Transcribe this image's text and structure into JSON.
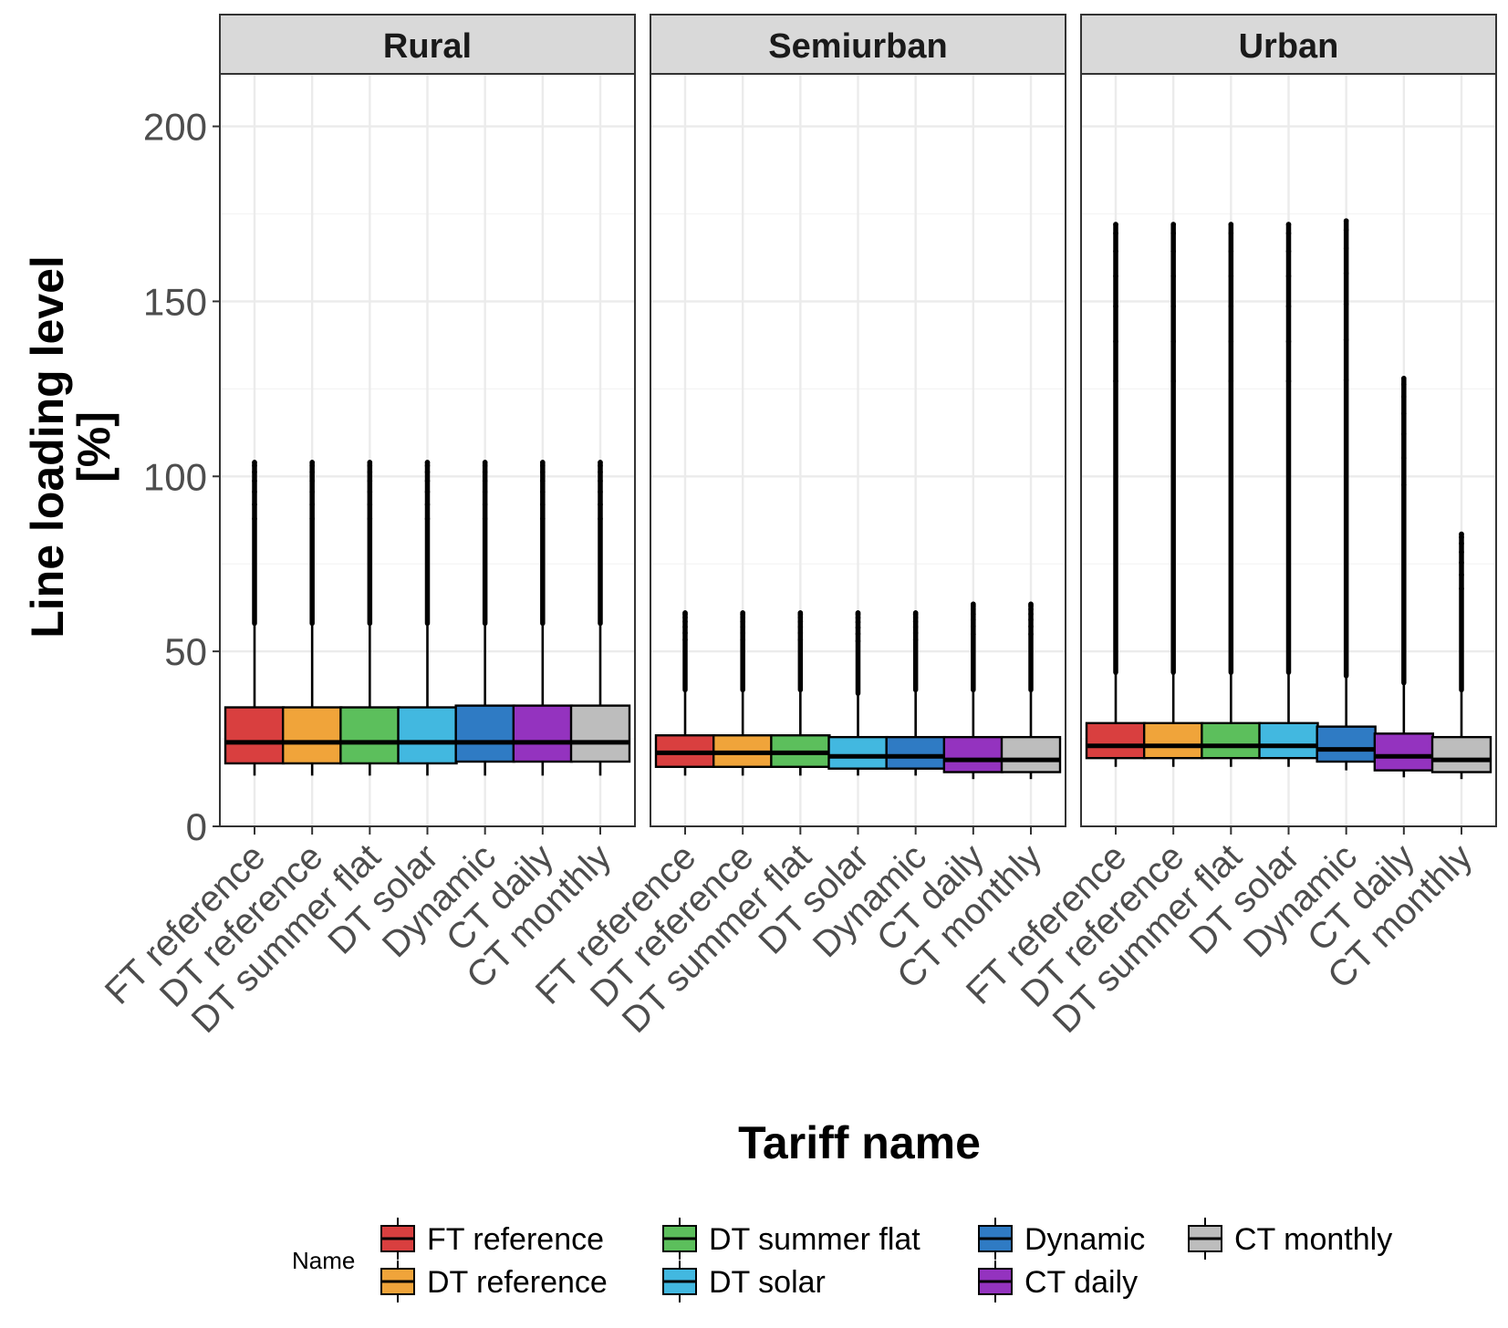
{
  "chart_data": {
    "type": "boxplot",
    "title": "",
    "xlabel": "Tariff name",
    "ylabel_lines": [
      "Line loading level",
      "[%]"
    ],
    "ylim": [
      0,
      215
    ],
    "yticks": [
      0,
      50,
      100,
      150,
      200
    ],
    "grid": true,
    "legend_title": "Name",
    "legend_position": "bottom",
    "categories": [
      "FT reference",
      "DT reference",
      "DT summer flat",
      "DT solar",
      "Dynamic",
      "CT daily",
      "CT monthly"
    ],
    "colors": {
      "FT reference": "#d93f3f",
      "DT reference": "#f0a43a",
      "DT summer flat": "#5cbf5c",
      "DT solar": "#42b8e0",
      "Dynamic": "#2f7bc4",
      "CT daily": "#9433bf",
      "CT monthly": "#bdbdbd"
    },
    "panels": [
      {
        "name": "Rural",
        "boxes": [
          {
            "category": "FT reference",
            "low": 14.5,
            "q1": 18,
            "median": 24,
            "q3": 34,
            "whisker_high": 58,
            "max": 104
          },
          {
            "category": "DT reference",
            "low": 14.5,
            "q1": 18,
            "median": 24,
            "q3": 34,
            "whisker_high": 58,
            "max": 104
          },
          {
            "category": "DT summer flat",
            "low": 14.5,
            "q1": 18,
            "median": 24,
            "q3": 34,
            "whisker_high": 58,
            "max": 104
          },
          {
            "category": "DT solar",
            "low": 14.5,
            "q1": 18,
            "median": 24,
            "q3": 34,
            "whisker_high": 58,
            "max": 104
          },
          {
            "category": "Dynamic",
            "low": 14.5,
            "q1": 18.5,
            "median": 24,
            "q3": 34.5,
            "whisker_high": 58,
            "max": 104
          },
          {
            "category": "CT daily",
            "low": 14.5,
            "q1": 18.5,
            "median": 24,
            "q3": 34.5,
            "whisker_high": 58,
            "max": 104
          },
          {
            "category": "CT monthly",
            "low": 14.5,
            "q1": 18.5,
            "median": 24,
            "q3": 34.5,
            "whisker_high": 58,
            "max": 104
          }
        ]
      },
      {
        "name": "Semiurban",
        "boxes": [
          {
            "category": "FT reference",
            "low": 14.5,
            "q1": 17,
            "median": 21,
            "q3": 26,
            "whisker_high": 39,
            "max": 61
          },
          {
            "category": "DT reference",
            "low": 14.5,
            "q1": 17,
            "median": 21,
            "q3": 26,
            "whisker_high": 39,
            "max": 61
          },
          {
            "category": "DT summer flat",
            "low": 14.5,
            "q1": 17,
            "median": 21,
            "q3": 26,
            "whisker_high": 39,
            "max": 61
          },
          {
            "category": "DT solar",
            "low": 14.5,
            "q1": 16.5,
            "median": 20,
            "q3": 25.5,
            "whisker_high": 38,
            "max": 61
          },
          {
            "category": "Dynamic",
            "low": 14.5,
            "q1": 16.5,
            "median": 20,
            "q3": 25.5,
            "whisker_high": 39,
            "max": 61
          },
          {
            "category": "CT daily",
            "low": 13.5,
            "q1": 15.5,
            "median": 19,
            "q3": 25.5,
            "whisker_high": 39,
            "max": 63.5
          },
          {
            "category": "CT monthly",
            "low": 13.5,
            "q1": 15.5,
            "median": 19,
            "q3": 25.5,
            "whisker_high": 39,
            "max": 63.5
          }
        ]
      },
      {
        "name": "Urban",
        "boxes": [
          {
            "category": "FT reference",
            "low": 17,
            "q1": 19.5,
            "median": 23,
            "q3": 29.5,
            "whisker_high": 44,
            "max": 172
          },
          {
            "category": "DT reference",
            "low": 17,
            "q1": 19.5,
            "median": 23,
            "q3": 29.5,
            "whisker_high": 44,
            "max": 172
          },
          {
            "category": "DT summer flat",
            "low": 17,
            "q1": 19.5,
            "median": 23,
            "q3": 29.5,
            "whisker_high": 44,
            "max": 172
          },
          {
            "category": "DT solar",
            "low": 17,
            "q1": 19.5,
            "median": 23,
            "q3": 29.5,
            "whisker_high": 44,
            "max": 172
          },
          {
            "category": "Dynamic",
            "low": 16,
            "q1": 18.5,
            "median": 22,
            "q3": 28.5,
            "whisker_high": 43,
            "max": 173
          },
          {
            "category": "CT daily",
            "low": 14,
            "q1": 16,
            "median": 20,
            "q3": 26.5,
            "whisker_high": 41,
            "max": 128
          },
          {
            "category": "CT monthly",
            "low": 13.5,
            "q1": 15.5,
            "median": 19,
            "q3": 25.5,
            "whisker_high": 39,
            "max": 83.5
          }
        ]
      }
    ]
  }
}
